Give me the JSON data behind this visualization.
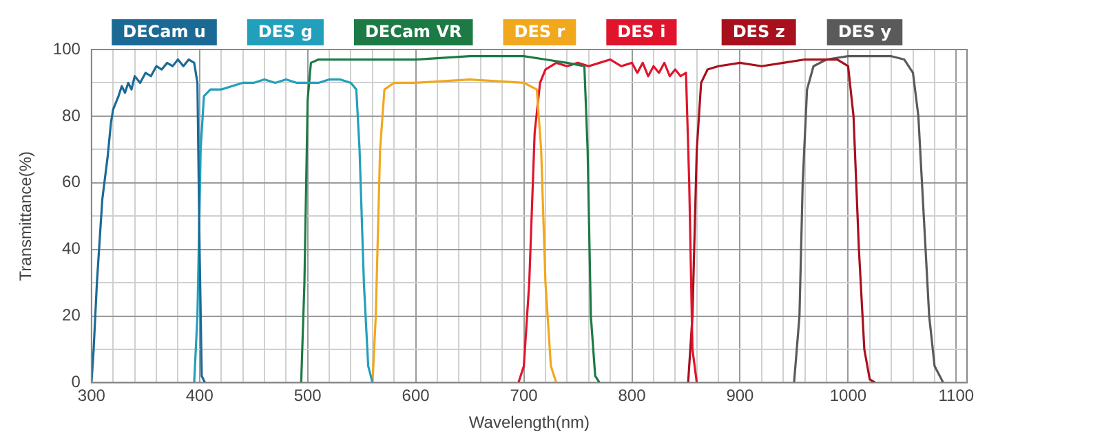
{
  "chart_data": {
    "type": "line",
    "xlabel": "Wavelength(nm)",
    "ylabel": "Transmittance(%)",
    "legend": "top",
    "grid": true,
    "marker": "none",
    "line_style": "solid",
    "xlim": [
      300,
      1110
    ],
    "ylim": [
      0,
      100
    ],
    "xticks": [
      300,
      {
        "value": 320,
        "label": null
      },
      {
        "value": 340,
        "label": null
      },
      {
        "value": 360,
        "label": null
      },
      {
        "value": 380,
        "label": null
      },
      400,
      {
        "value": 420,
        "label": null
      },
      {
        "value": 440,
        "label": null
      },
      {
        "value": 460,
        "label": null
      },
      {
        "value": 480,
        "label": null
      },
      500,
      {
        "value": 520,
        "label": null
      },
      {
        "value": 540,
        "label": null
      },
      {
        "value": 560,
        "label": null
      },
      {
        "value": 580,
        "label": null
      },
      600,
      {
        "value": 620,
        "label": null
      },
      {
        "value": 640,
        "label": null
      },
      {
        "value": 660,
        "label": null
      },
      {
        "value": 680,
        "label": null
      },
      700,
      {
        "value": 720,
        "label": null
      },
      {
        "value": 740,
        "label": null
      },
      {
        "value": 760,
        "label": null
      },
      {
        "value": 780,
        "label": null
      },
      800,
      {
        "value": 820,
        "label": null
      },
      {
        "value": 840,
        "label": null
      },
      {
        "value": 860,
        "label": null
      },
      {
        "value": 880,
        "label": null
      },
      900,
      {
        "value": 920,
        "label": null
      },
      {
        "value": 940,
        "label": null
      },
      {
        "value": 960,
        "label": null
      },
      {
        "value": 980,
        "label": null
      },
      1000,
      {
        "value": 1020,
        "label": null
      },
      {
        "value": 1040,
        "label": null
      },
      {
        "value": 1060,
        "label": null
      },
      {
        "value": 1080,
        "label": null
      },
      1100
    ],
    "yticks": [
      0,
      {
        "value": 10,
        "label": null
      },
      20,
      {
        "value": 30,
        "label": null
      },
      40,
      {
        "value": 50,
        "label": null
      },
      60,
      {
        "value": 70,
        "label": null
      },
      80,
      {
        "value": 90,
        "label": null
      },
      100
    ],
    "series": [
      {
        "name": "DECam u",
        "color": "#1b6a96",
        "x": [
          300,
          302,
          305,
          310,
          315,
          318,
          320,
          325,
          328,
          331,
          334,
          337,
          340,
          345,
          350,
          355,
          360,
          365,
          370,
          375,
          380,
          385,
          390,
          395,
          398,
          400,
          402,
          405
        ],
        "values": [
          0,
          10,
          30,
          55,
          68,
          78,
          82,
          86,
          89,
          87,
          90,
          88,
          92,
          90,
          93,
          92,
          95,
          94,
          96,
          95,
          97,
          95,
          97,
          96,
          90,
          40,
          2,
          0
        ]
      },
      {
        "name": "DES g",
        "color": "#22a0bb",
        "x": [
          395,
          398,
          401,
          404,
          410,
          420,
          430,
          440,
          450,
          460,
          470,
          480,
          490,
          500,
          510,
          520,
          530,
          540,
          545,
          548,
          552,
          556,
          560
        ],
        "values": [
          0,
          20,
          70,
          86,
          88,
          88,
          89,
          90,
          90,
          91,
          90,
          91,
          90,
          90,
          90,
          91,
          91,
          90,
          88,
          70,
          30,
          5,
          0
        ]
      },
      {
        "name": "DECam VR",
        "color": "#1c7a45",
        "x": [
          494,
          497,
          500,
          503,
          510,
          550,
          600,
          650,
          700,
          720,
          740,
          756,
          759,
          762,
          766,
          770
        ],
        "values": [
          0,
          30,
          85,
          96,
          97,
          97,
          97,
          98,
          98,
          97,
          96,
          95,
          70,
          20,
          2,
          0
        ]
      },
      {
        "name": "DES r",
        "color": "#f2a81d",
        "x": [
          560,
          563,
          567,
          571,
          580,
          600,
          650,
          700,
          712,
          716,
          720,
          725,
          730
        ],
        "values": [
          0,
          20,
          70,
          88,
          90,
          90,
          91,
          90,
          88,
          70,
          30,
          5,
          0
        ]
      },
      {
        "name": "DES i",
        "color": "#e0142c",
        "x": [
          695,
          700,
          705,
          710,
          715,
          720,
          730,
          740,
          750,
          760,
          770,
          780,
          790,
          800,
          805,
          810,
          815,
          820,
          825,
          830,
          835,
          840,
          845,
          850,
          853,
          856,
          860
        ],
        "values": [
          0,
          5,
          30,
          75,
          90,
          94,
          96,
          95,
          96,
          95,
          96,
          97,
          95,
          96,
          93,
          96,
          92,
          95,
          93,
          96,
          92,
          94,
          92,
          93,
          60,
          10,
          0
        ]
      },
      {
        "name": "DES z",
        "color": "#a8101e",
        "x": [
          852,
          856,
          860,
          864,
          870,
          880,
          900,
          920,
          940,
          960,
          980,
          990,
          1000,
          1005,
          1010,
          1015,
          1020,
          1025
        ],
        "values": [
          0,
          20,
          70,
          90,
          94,
          95,
          96,
          95,
          96,
          97,
          97,
          97,
          95,
          80,
          40,
          10,
          1,
          0
        ]
      },
      {
        "name": "DES y",
        "color": "#5a5a5a",
        "x": [
          950,
          955,
          958,
          962,
          968,
          980,
          1000,
          1040,
          1052,
          1060,
          1065,
          1070,
          1075,
          1080,
          1088
        ],
        "values": [
          0,
          20,
          60,
          88,
          95,
          97,
          98,
          98,
          97,
          93,
          80,
          50,
          20,
          5,
          0
        ]
      }
    ]
  }
}
